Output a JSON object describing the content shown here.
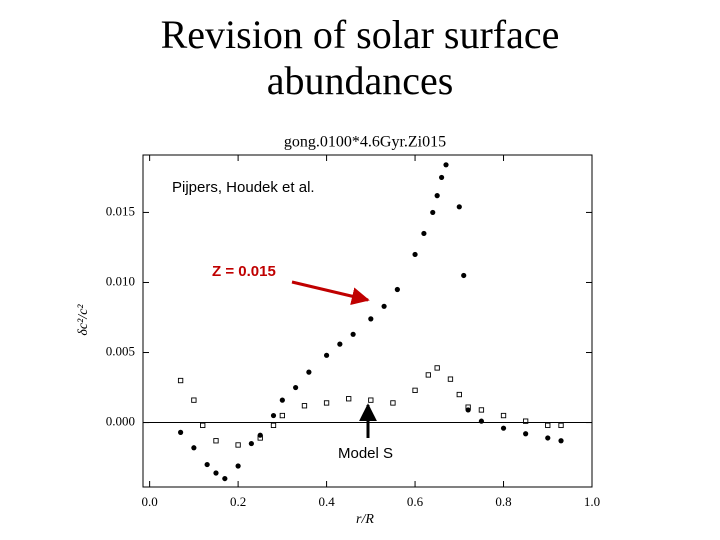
{
  "chart_data": {
    "type": "scatter",
    "slide_title": "Revision of solar surface abundances",
    "title": "gong.0100*4.6Gyr.Zi015",
    "subtitle": "Pijpers, Houdek et al.",
    "x_label": "r/R",
    "y_label": "δc²/c²",
    "xlim": [
      -0.015,
      1.0
    ],
    "ylim": [
      -0.0046,
      0.0191
    ],
    "xticks": [
      {
        "value": 0,
        "label": "0.0"
      },
      0.2,
      0.4,
      0.6,
      0.8,
      {
        "value": 1,
        "label": "1.0"
      }
    ],
    "yticks": [
      {
        "value": 0,
        "label": "0.000"
      },
      0.005,
      {
        "value": 0.01,
        "label": "0.010"
      },
      0.015
    ],
    "series": [
      {
        "name": "Z = 0.015",
        "color": "#000000",
        "x": [
          0.07,
          0.1,
          0.13,
          0.15,
          0.17,
          0.2,
          0.23,
          0.25,
          0.28,
          0.3,
          0.33,
          0.36,
          0.4,
          0.43,
          0.46,
          0.5,
          0.53,
          0.56,
          0.6,
          0.62,
          0.64,
          0.65,
          0.66,
          0.67,
          0.7,
          0.71,
          0.72,
          0.75,
          0.8,
          0.85,
          0.9,
          0.93
        ],
        "values": [
          -0.0007,
          -0.0018,
          -0.003,
          -0.0036,
          -0.004,
          -0.0031,
          -0.0015,
          -0.0009,
          0.0005,
          0.0016,
          0.0025,
          0.0036,
          0.0048,
          0.0056,
          0.0063,
          0.0074,
          0.0083,
          0.0095,
          0.012,
          0.0135,
          0.015,
          0.0162,
          0.0175,
          0.0184,
          0.0154,
          0.0105,
          0.0009,
          0.0001,
          -0.0004,
          -0.0008,
          -0.0011,
          -0.0013
        ]
      },
      {
        "name": "Model S",
        "color": "#000000",
        "x": [
          0.07,
          0.1,
          0.12,
          0.15,
          0.2,
          0.25,
          0.28,
          0.3,
          0.35,
          0.4,
          0.45,
          0.5,
          0.55,
          0.6,
          0.63,
          0.65,
          0.68,
          0.7,
          0.72,
          0.75,
          0.8,
          0.85,
          0.9,
          0.93
        ],
        "values": [
          0.003,
          0.0016,
          -0.0002,
          -0.0013,
          -0.0016,
          -0.0011,
          -0.0002,
          0.0005,
          0.0012,
          0.0014,
          0.0017,
          0.0016,
          0.0014,
          0.0023,
          0.0034,
          0.0039,
          0.0031,
          0.002,
          0.0011,
          0.0009,
          0.0005,
          0.0001,
          -0.0002,
          -0.0002
        ]
      }
    ]
  }
}
